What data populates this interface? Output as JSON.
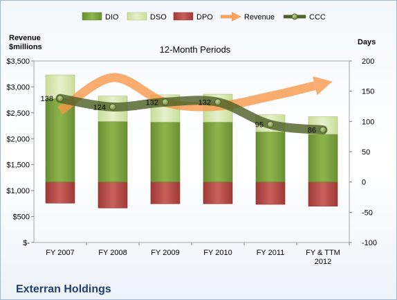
{
  "chart_data": {
    "type": "bar",
    "subtitle": "12-Month Periods",
    "company": "Exterran Holdings",
    "left_axis_title": [
      "Revenue",
      "$millions"
    ],
    "right_axis_title": "Days",
    "categories": [
      "FY 2007",
      "FY 2008",
      "FY 2009",
      "FY 2010",
      "FY 2011",
      "FY & TTM 2012"
    ],
    "left_ticks": [
      "$-",
      "$500",
      "$1,000",
      "$1,500",
      "$2,000",
      "$2,500",
      "$3,000",
      "$3,500"
    ],
    "left_ylim": [
      0,
      3500
    ],
    "right_ticks": [
      "-100",
      "-50",
      "0",
      "50",
      "100",
      "150",
      "200"
    ],
    "right_ylim": [
      -100,
      200
    ],
    "series": [
      {
        "name": "DIO",
        "type": "stacked-bar",
        "color": "#7fa441",
        "values": [
          138,
          100,
          99,
          99,
          83,
          79
        ]
      },
      {
        "name": "DSO",
        "type": "stacked-bar",
        "color": "#d9e8b3",
        "values": [
          39,
          42,
          45,
          46,
          28,
          29
        ]
      },
      {
        "name": "DPO",
        "type": "stacked-bar-negative",
        "color": "#c0504d",
        "values": [
          -35,
          -43,
          -36,
          -36,
          -37,
          -40
        ]
      },
      {
        "name": "Revenue",
        "type": "arrow-line",
        "color": "#f79646",
        "values": [
          2540,
          3180,
          2700,
          2630,
          2820,
          3060
        ]
      },
      {
        "name": "CCC",
        "type": "line-markers",
        "color": "#4f6228",
        "values": [
          138,
          124,
          132,
          132,
          95,
          86
        ]
      }
    ],
    "ccc_labels": [
      "138",
      "124",
      "132",
      "132",
      "95",
      "86"
    ],
    "legend": [
      "DIO",
      "DSO",
      "DPO",
      "Revenue",
      "CCC"
    ],
    "legend_position": "top",
    "grid": false
  }
}
